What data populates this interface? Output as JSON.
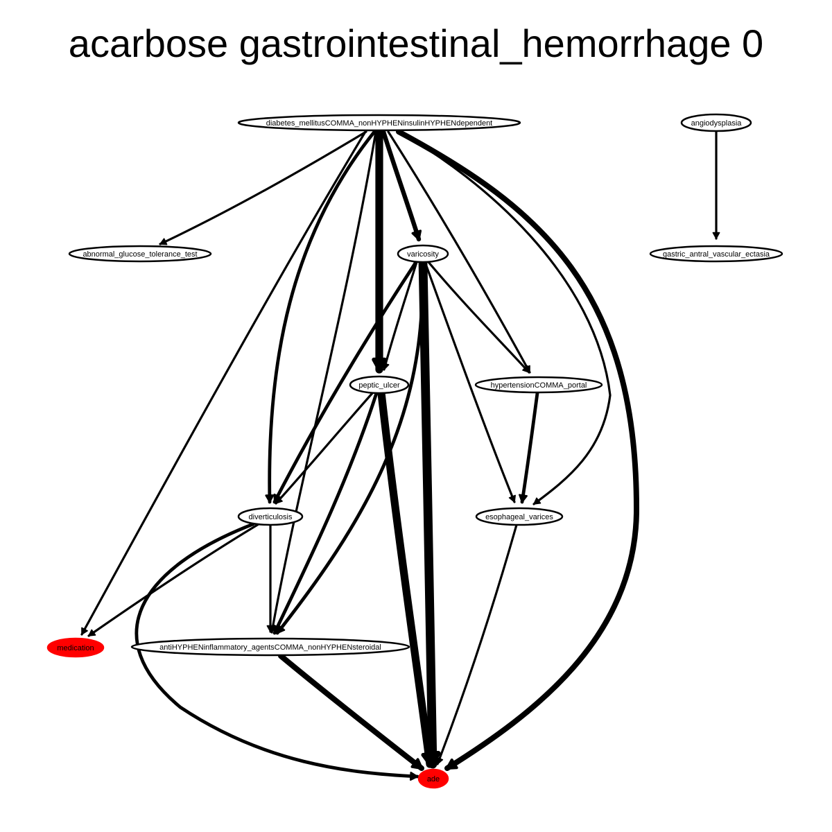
{
  "title": "acarbose gastrointestinal_hemorrhage 0",
  "colors": {
    "highlight": "#ff0000",
    "node_fill": "#ffffff",
    "edge": "#000000"
  },
  "nodes": [
    {
      "id": "diabetes",
      "label": "diabetes_mellitusCOMMA_nonHYPHENinsulinHYPHENdependent",
      "highlight": false
    },
    {
      "id": "angiodysplasia",
      "label": "angiodysplasia",
      "highlight": false
    },
    {
      "id": "abnormal_gtt",
      "label": "abnormal_glucose_tolerance_test",
      "highlight": false
    },
    {
      "id": "varicosity",
      "label": "varicosity",
      "highlight": false
    },
    {
      "id": "gave",
      "label": "gastric_antral_vascular_ectasia",
      "highlight": false
    },
    {
      "id": "peptic_ulcer",
      "label": "peptic_ulcer",
      "highlight": false
    },
    {
      "id": "portal_htn",
      "label": "hypertensionCOMMA_portal",
      "highlight": false
    },
    {
      "id": "diverticulosis",
      "label": "diverticulosis",
      "highlight": false
    },
    {
      "id": "esophageal_varices",
      "label": "esophageal_varices",
      "highlight": false
    },
    {
      "id": "medication",
      "label": "medication",
      "highlight": true
    },
    {
      "id": "nsaids",
      "label": "antiHYPHENinflammatory_agentsCOMMA_nonHYPHENsteroidal",
      "highlight": false
    },
    {
      "id": "ade",
      "label": "ade",
      "highlight": true
    }
  ],
  "edges": [
    {
      "from": "diabetes",
      "to": "abnormal_gtt",
      "weight": 2
    },
    {
      "from": "diabetes",
      "to": "varicosity",
      "weight": 4
    },
    {
      "from": "diabetes",
      "to": "peptic_ulcer",
      "weight": 7
    },
    {
      "from": "diabetes",
      "to": "portal_htn",
      "weight": 2
    },
    {
      "from": "diabetes",
      "to": "diverticulosis",
      "weight": 3
    },
    {
      "from": "diabetes",
      "to": "esophageal_varices",
      "weight": 2
    },
    {
      "from": "diabetes",
      "to": "medication",
      "weight": 2
    },
    {
      "from": "diabetes",
      "to": "nsaids",
      "weight": 2
    },
    {
      "from": "diabetes",
      "to": "ade",
      "weight": 5
    },
    {
      "from": "angiodysplasia",
      "to": "gave",
      "weight": 2
    },
    {
      "from": "varicosity",
      "to": "peptic_ulcer",
      "weight": 2
    },
    {
      "from": "varicosity",
      "to": "portal_htn",
      "weight": 2
    },
    {
      "from": "varicosity",
      "to": "diverticulosis",
      "weight": 3
    },
    {
      "from": "varicosity",
      "to": "esophageal_varices",
      "weight": 2
    },
    {
      "from": "varicosity",
      "to": "nsaids",
      "weight": 3
    },
    {
      "from": "varicosity",
      "to": "ade",
      "weight": 8
    },
    {
      "from": "peptic_ulcer",
      "to": "diverticulosis",
      "weight": 2
    },
    {
      "from": "peptic_ulcer",
      "to": "nsaids",
      "weight": 3
    },
    {
      "from": "peptic_ulcer",
      "to": "ade",
      "weight": 7
    },
    {
      "from": "portal_htn",
      "to": "esophageal_varices",
      "weight": 3
    },
    {
      "from": "diverticulosis",
      "to": "medication",
      "weight": 2
    },
    {
      "from": "diverticulosis",
      "to": "nsaids",
      "weight": 2
    },
    {
      "from": "diverticulosis",
      "to": "ade",
      "weight": 3
    },
    {
      "from": "esophageal_varices",
      "to": "ade",
      "weight": 2
    },
    {
      "from": "nsaids",
      "to": "ade",
      "weight": 5
    }
  ]
}
